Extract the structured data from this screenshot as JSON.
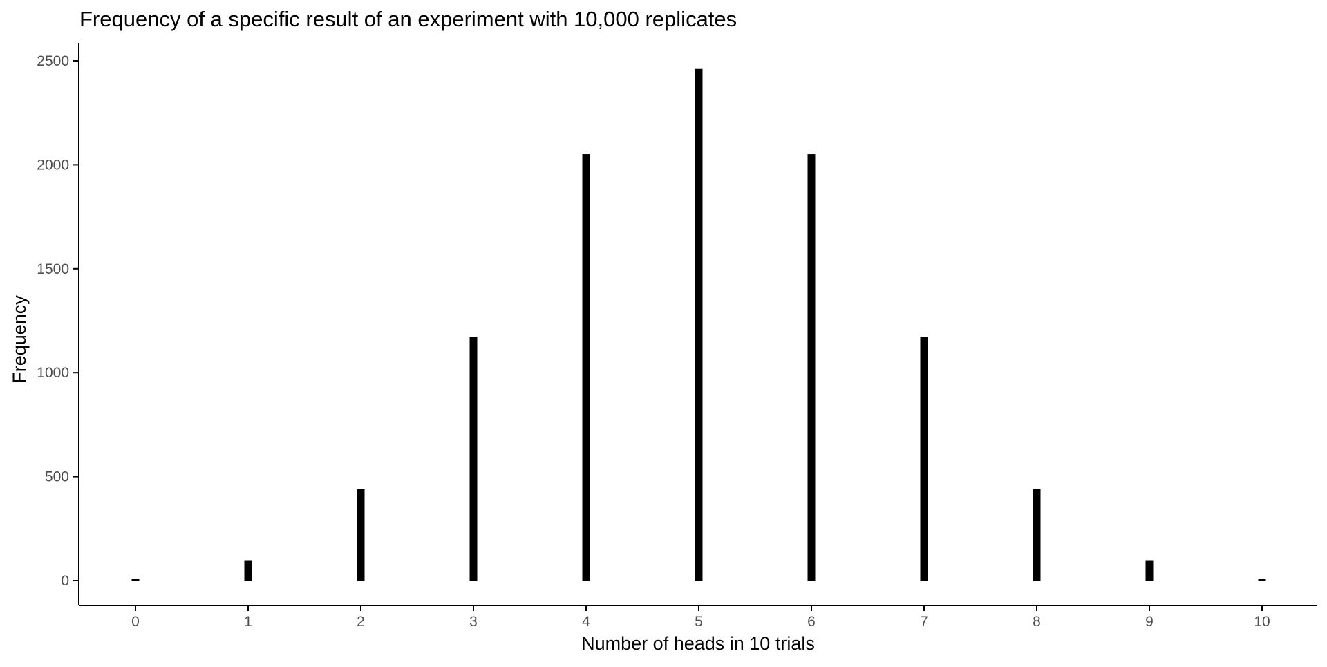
{
  "chart_data": {
    "type": "bar",
    "title": "Frequency of a specific result of an experiment with 10,000 replicates",
    "xlabel": "Number of heads in 10 trials",
    "ylabel": "Frequency",
    "categories": [
      "0",
      "1",
      "2",
      "3",
      "4",
      "5",
      "6",
      "7",
      "8",
      "9",
      "10"
    ],
    "values": [
      10,
      98,
      439,
      1172,
      2051,
      2461,
      2051,
      1172,
      439,
      98,
      10
    ],
    "ylim": [
      0,
      2500
    ],
    "yticks": [
      0,
      500,
      1000,
      1500,
      2000,
      2500
    ],
    "grid": false,
    "legend": "none",
    "bar_color": "#000000",
    "axis_color": "#000000",
    "tick_label_color": "#4d4d4d"
  }
}
